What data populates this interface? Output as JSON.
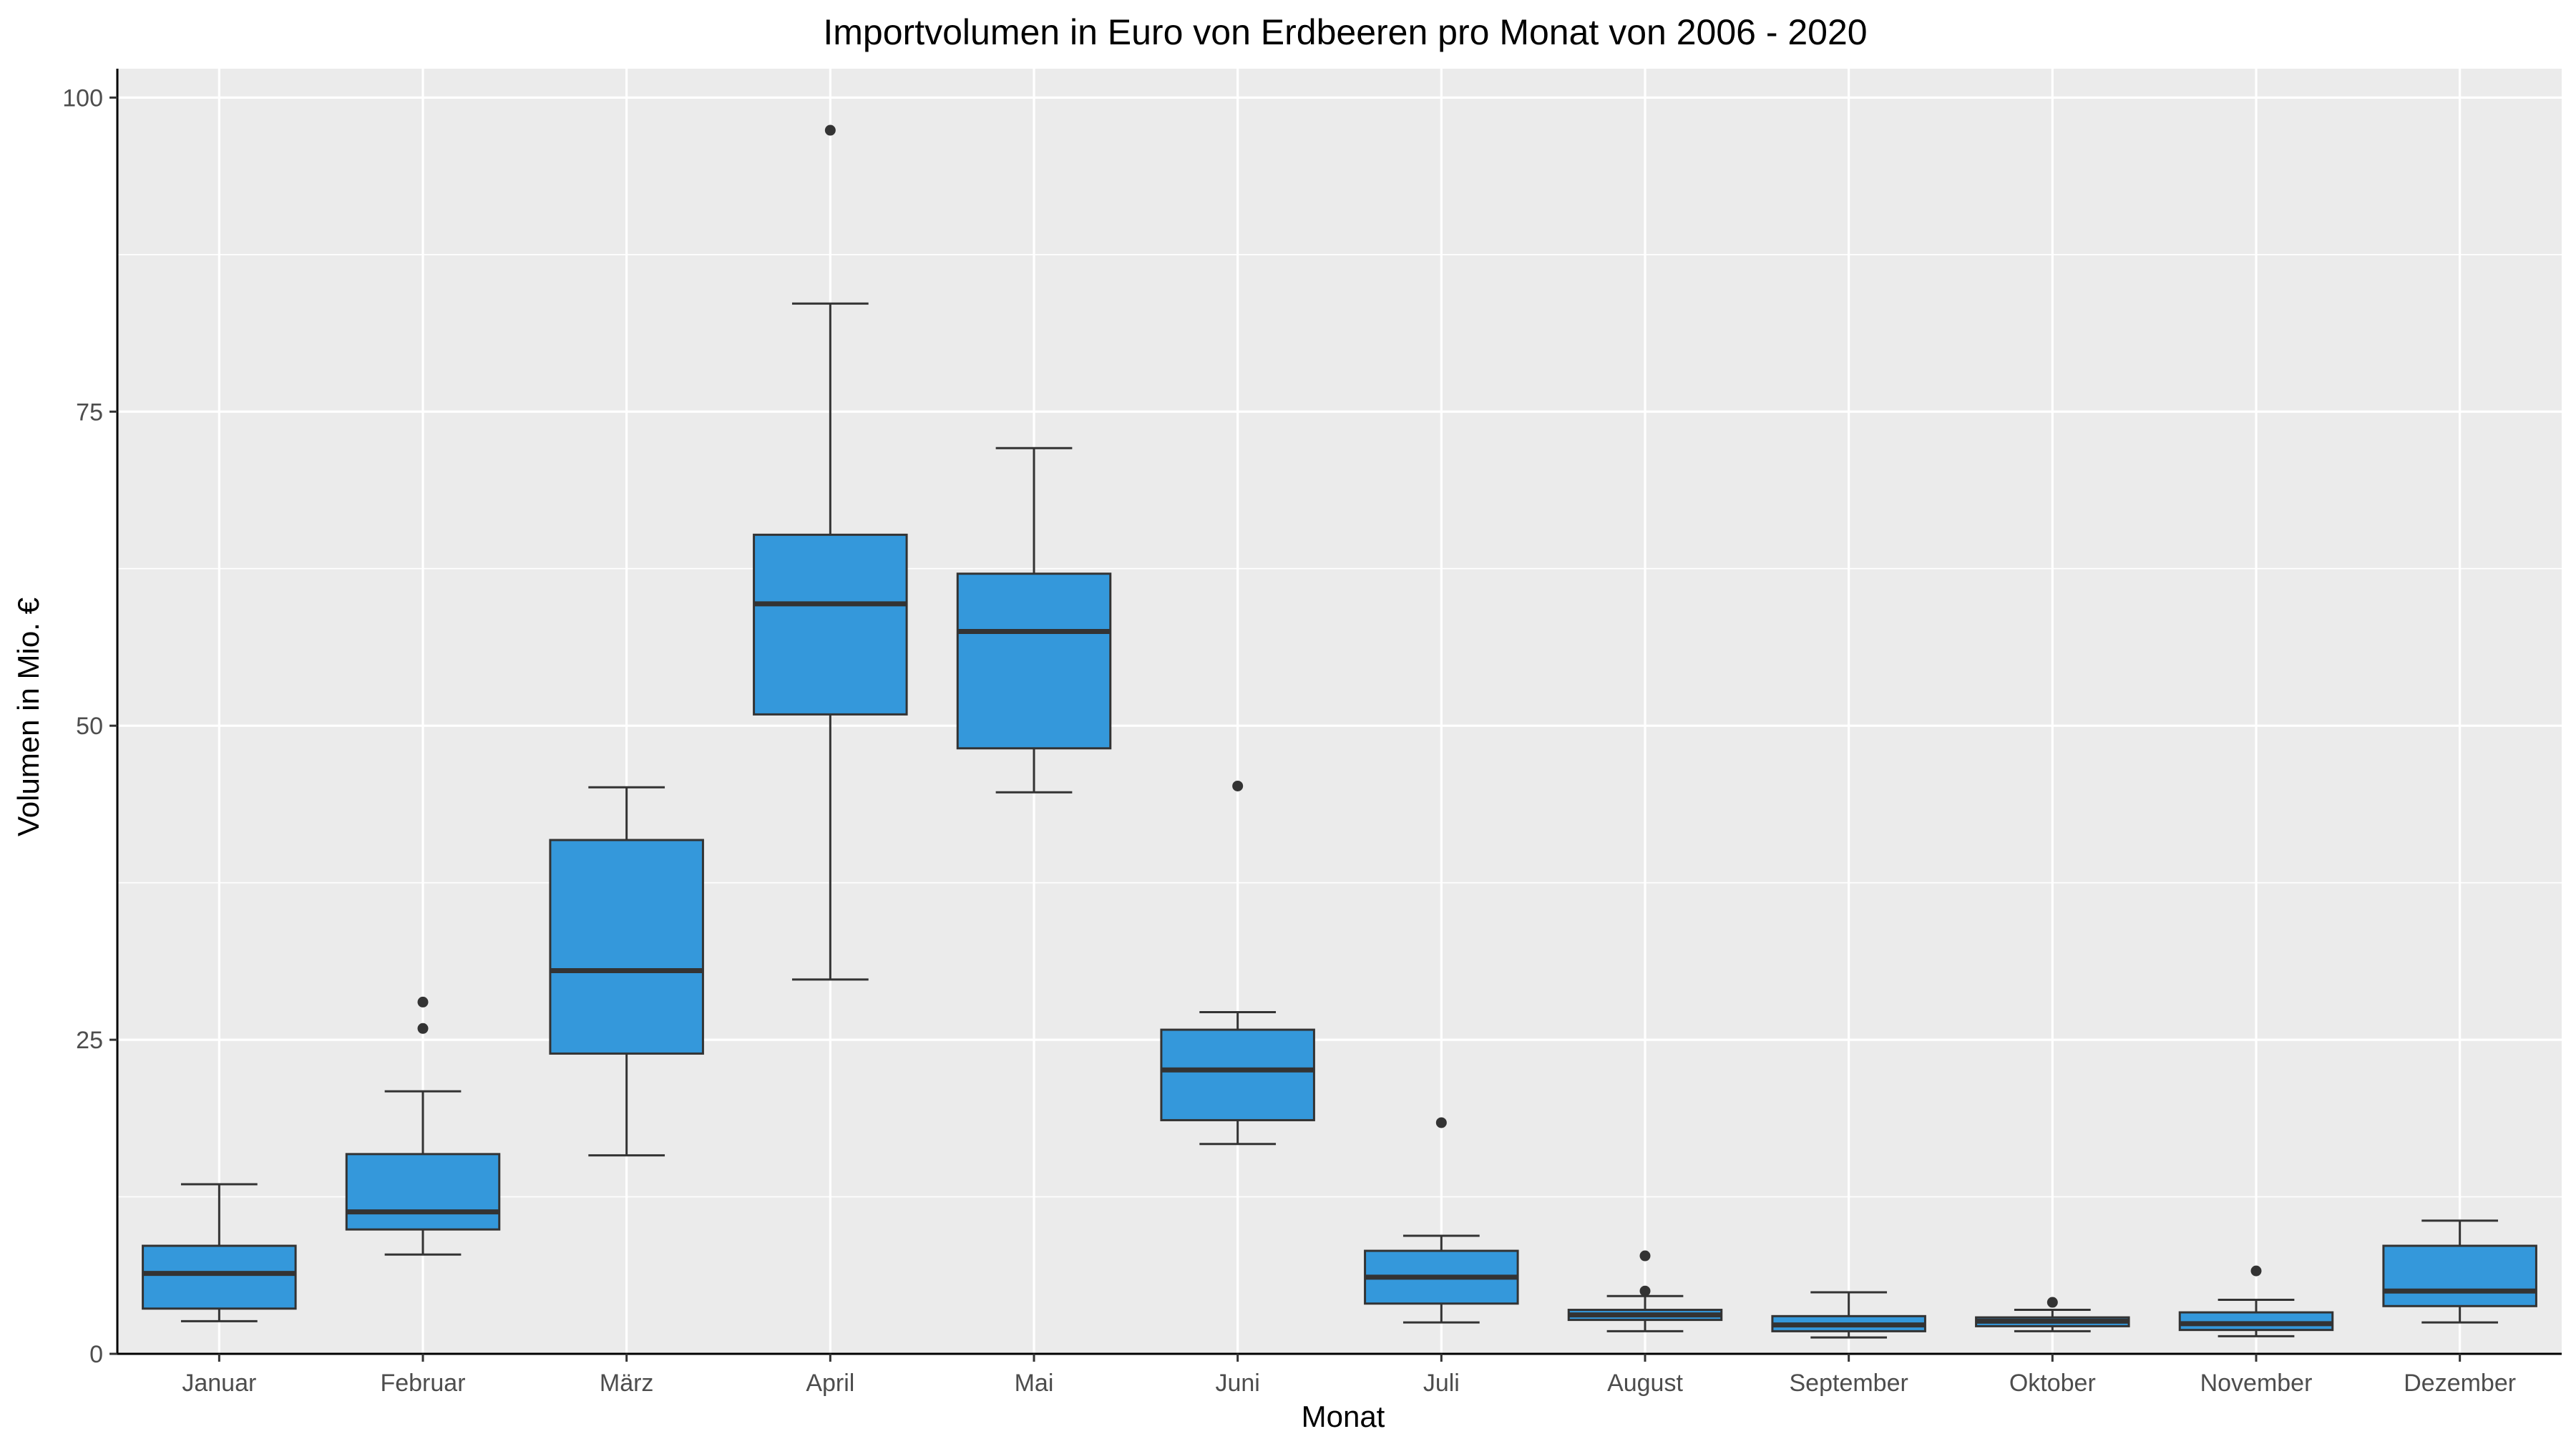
{
  "chart_data": {
    "type": "boxplot",
    "title": "Importvolumen in Euro von Erdbeeren pro Monat von 2006 - 2020",
    "xlabel": "Monat",
    "ylabel": "Volumen in Mio. €",
    "ylim": [
      0,
      102.3
    ],
    "yticks": [
      0,
      25,
      50,
      75,
      100
    ],
    "grid": true,
    "legend": "none",
    "colors": {
      "panel": "#ebebeb",
      "grid": "#ffffff",
      "box_fill": "#3498db",
      "box_line": "#333333",
      "outlier": "#333333"
    },
    "categories": [
      "Januar",
      "Februar",
      "März",
      "April",
      "Mai",
      "Juni",
      "Juli",
      "August",
      "September",
      "Oktober",
      "November",
      "Dezember"
    ],
    "boxes": [
      {
        "category": "Januar",
        "whisker_low": 2.6,
        "q1": 3.6,
        "median": 6.4,
        "q3": 8.6,
        "whisker_high": 13.5,
        "outliers": []
      },
      {
        "category": "Februar",
        "whisker_low": 7.9,
        "q1": 9.9,
        "median": 11.3,
        "q3": 15.9,
        "whisker_high": 20.9,
        "outliers": [
          25.9,
          28.0
        ]
      },
      {
        "category": "März",
        "whisker_low": 15.8,
        "q1": 23.9,
        "median": 30.5,
        "q3": 40.9,
        "whisker_high": 45.1,
        "outliers": []
      },
      {
        "category": "April",
        "whisker_low": 29.8,
        "q1": 50.9,
        "median": 59.7,
        "q3": 65.2,
        "whisker_high": 83.6,
        "outliers": [
          97.4
        ]
      },
      {
        "category": "Mai",
        "whisker_low": 44.7,
        "q1": 48.2,
        "median": 57.5,
        "q3": 62.1,
        "whisker_high": 72.1,
        "outliers": []
      },
      {
        "category": "Juni",
        "whisker_low": 16.7,
        "q1": 18.6,
        "median": 22.6,
        "q3": 25.8,
        "whisker_high": 27.2,
        "outliers": [
          45.2
        ]
      },
      {
        "category": "Juli",
        "whisker_low": 2.5,
        "q1": 4.0,
        "median": 6.1,
        "q3": 8.2,
        "whisker_high": 9.4,
        "outliers": [
          18.4
        ]
      },
      {
        "category": "August",
        "whisker_low": 1.8,
        "q1": 2.7,
        "median": 3.1,
        "q3": 3.5,
        "whisker_high": 4.6,
        "outliers": [
          5.0,
          7.8
        ]
      },
      {
        "category": "September",
        "whisker_low": 1.3,
        "q1": 1.8,
        "median": 2.3,
        "q3": 3.0,
        "whisker_high": 4.9,
        "outliers": []
      },
      {
        "category": "Oktober",
        "whisker_low": 1.8,
        "q1": 2.2,
        "median": 2.6,
        "q3": 2.9,
        "whisker_high": 3.5,
        "outliers": [
          4.1
        ]
      },
      {
        "category": "November",
        "whisker_low": 1.4,
        "q1": 1.9,
        "median": 2.4,
        "q3": 3.3,
        "whisker_high": 4.3,
        "outliers": [
          6.6
        ]
      },
      {
        "category": "Dezember",
        "whisker_low": 2.5,
        "q1": 3.8,
        "median": 5.0,
        "q3": 8.6,
        "whisker_high": 10.6,
        "outliers": []
      }
    ]
  }
}
